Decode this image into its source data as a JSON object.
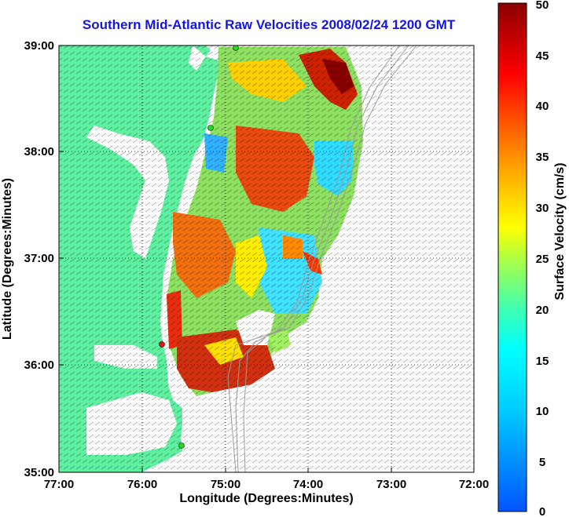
{
  "title": "Southern Mid-Atlantic Raw Velocities 2008/02/24 1200 GMT",
  "axes": {
    "xlabel": "Longitude (Degrees:Minutes)",
    "ylabel": "Latitude (Degrees:Minutes)",
    "xticks": [
      "77:00",
      "76:00",
      "75:00",
      "74:00",
      "73:00",
      "72:00"
    ],
    "yticks": [
      "39:00",
      "38:00",
      "37:00",
      "36:00",
      "35:00"
    ]
  },
  "colorbar": {
    "label": "Surface Velocity (cm/s)",
    "ticks": [
      "50",
      "45",
      "40",
      "35",
      "30",
      "25",
      "20",
      "15",
      "10",
      "5",
      "0"
    ]
  },
  "colors": {
    "title": "#1515e0",
    "land": "#5ef0a0",
    "ocean": "#ffffff",
    "bathymetry": "#9a9a9a",
    "station_green": "#22dd22",
    "station_red": "#ee1111"
  }
}
